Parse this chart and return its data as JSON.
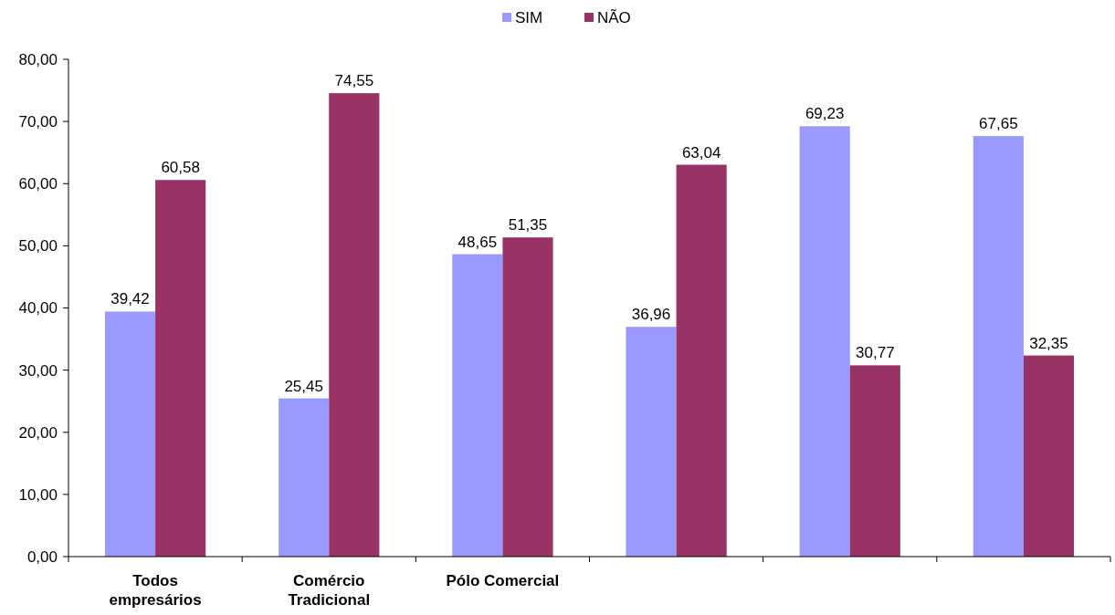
{
  "chart_data": {
    "type": "bar",
    "categories": [
      "Todos empresários",
      "Comércio Tradicional",
      "Pólo Comercial",
      null,
      null,
      null
    ],
    "series": [
      {
        "name": "SIM",
        "color": "#9999ff",
        "values": [
          39.42,
          25.45,
          48.65,
          36.96,
          69.23,
          67.65
        ],
        "value_labels": [
          "39,42",
          "25,45",
          "48,65",
          "36,96",
          "69,23",
          "67,65"
        ]
      },
      {
        "name": "NÃO",
        "color": "#993366",
        "values": [
          60.58,
          74.55,
          51.35,
          63.04,
          30.77,
          32.35
        ],
        "value_labels": [
          "60,58",
          "74,55",
          "51,35",
          "63,04",
          "30,77",
          "32,35"
        ]
      }
    ],
    "ylim": [
      0,
      80
    ],
    "yticks": [
      {
        "value": 0,
        "label": "0,00"
      },
      {
        "value": 10,
        "label": "10,00"
      },
      {
        "value": 20,
        "label": "20,00"
      },
      {
        "value": 30,
        "label": "30,00"
      },
      {
        "value": 40,
        "label": "40,00"
      },
      {
        "value": 50,
        "label": "50,00"
      },
      {
        "value": 60,
        "label": "60,00"
      },
      {
        "value": 70,
        "label": "70,00"
      },
      {
        "value": 80,
        "label": "80,00"
      }
    ],
    "grid": false,
    "legend": "top"
  }
}
